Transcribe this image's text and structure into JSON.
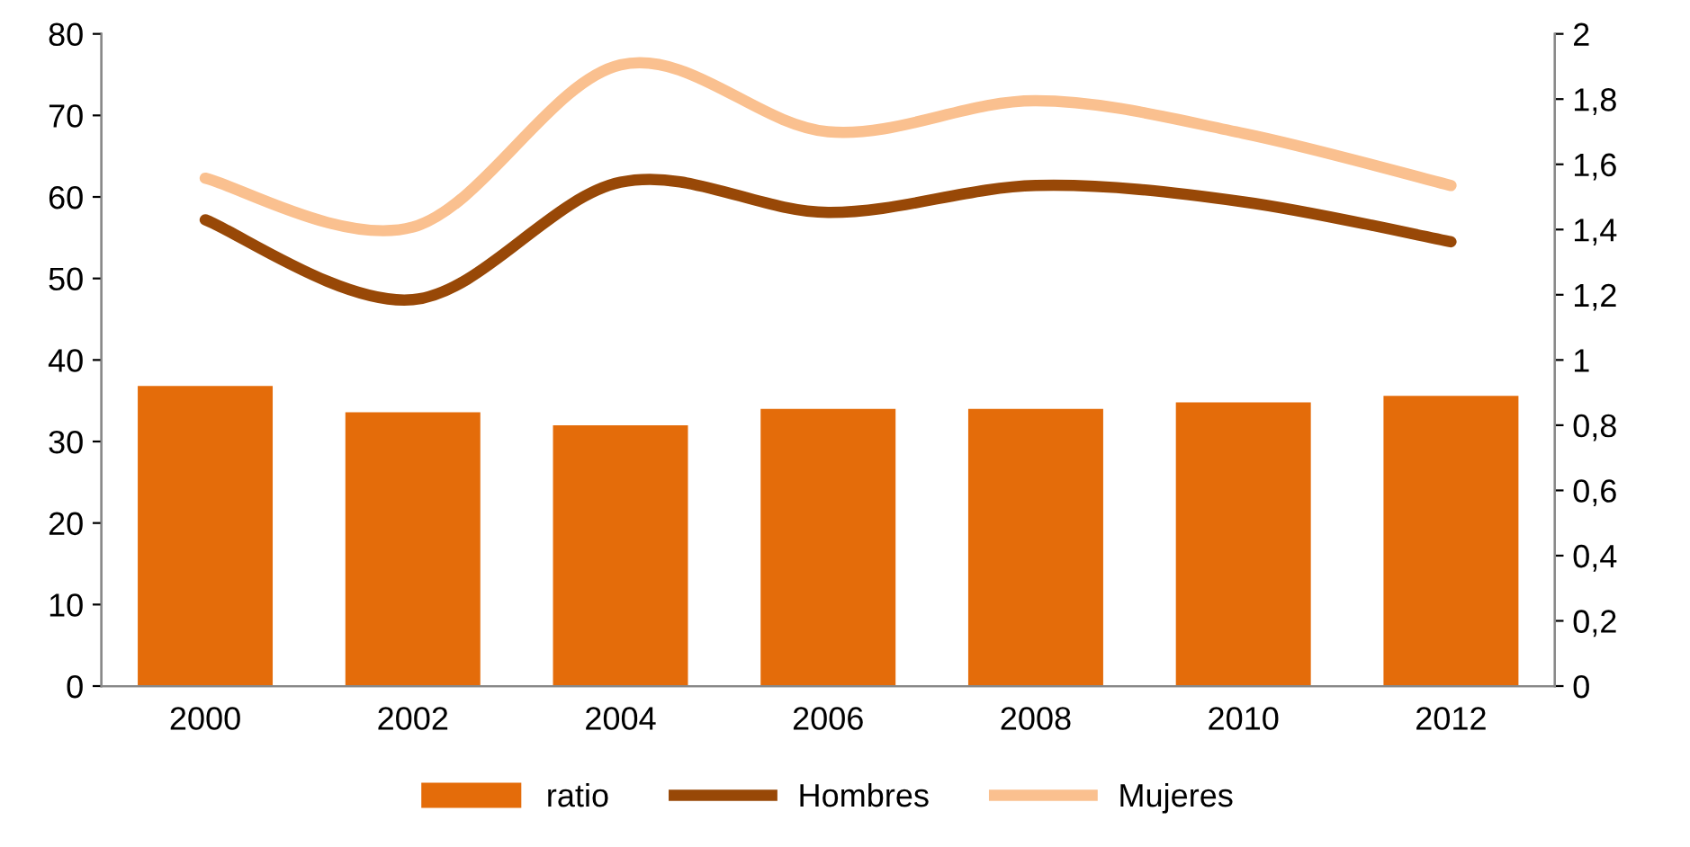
{
  "chart_data": {
    "type": "bar",
    "categories": [
      "2000",
      "2002",
      "2004",
      "2006",
      "2008",
      "2010",
      "2012"
    ],
    "series": [
      {
        "name": "ratio",
        "axis": "y2",
        "color": "#e46c0a",
        "values": [
          0.92,
          0.84,
          0.8,
          0.85,
          0.85,
          0.87,
          0.89
        ]
      },
      {
        "name": "Hombres",
        "type": "line",
        "axis": "y",
        "color": "#984807",
        "values": [
          57.2,
          47.4,
          61.8,
          58.1,
          61.4,
          59.4,
          54.5
        ]
      },
      {
        "name": "Mujeres",
        "type": "line",
        "axis": "y",
        "color": "#fac08f",
        "values": [
          62.3,
          56.3,
          76.2,
          68.0,
          71.8,
          67.8,
          61.4
        ]
      }
    ],
    "ylim": [
      0,
      80
    ],
    "yticks": [
      0,
      10,
      20,
      30,
      40,
      50,
      60,
      70,
      80
    ],
    "y2lim": [
      0,
      2
    ],
    "y2ticks": [
      0,
      {
        "value": 0.2,
        "label": "0,2"
      },
      {
        "value": 0.4,
        "label": "0,4"
      },
      {
        "value": 0.6,
        "label": "0,6"
      },
      {
        "value": 0.8,
        "label": "0,8"
      },
      1,
      {
        "value": 1.2,
        "label": "1,2"
      },
      {
        "value": 1.4,
        "label": "1,4"
      },
      {
        "value": 1.6,
        "label": "1,6"
      },
      {
        "value": 1.8,
        "label": "1,8"
      },
      2
    ],
    "grid": false,
    "legend": "bottom",
    "marker": "none",
    "line_style": "solid"
  }
}
